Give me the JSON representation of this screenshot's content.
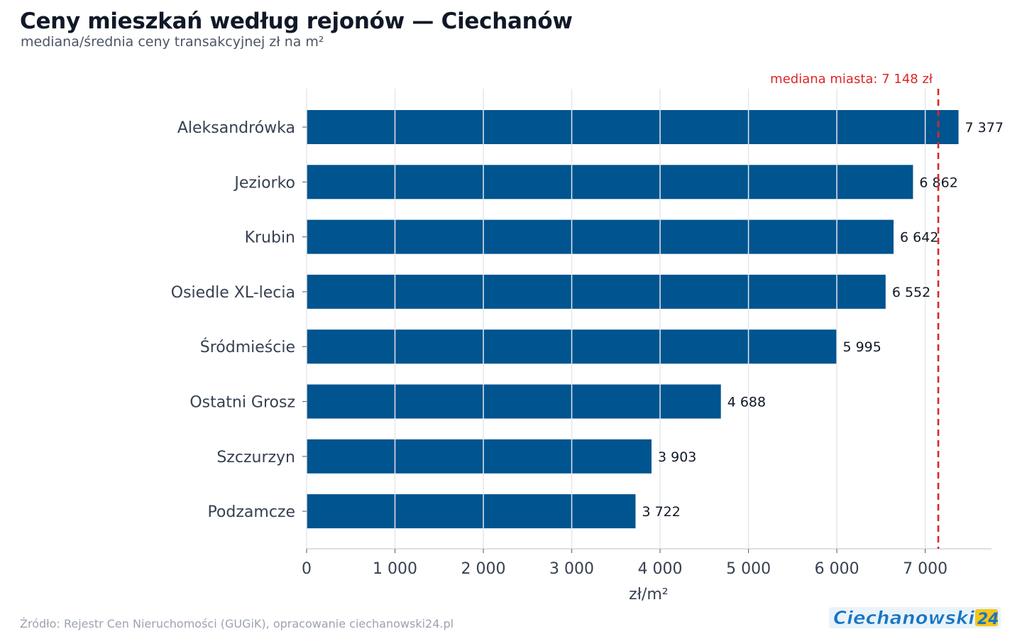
{
  "title": "Ceny mieszkań według rejonów — Ciechanów",
  "subtitle": "mediana/średnia ceny transakcyjnej zł na m²",
  "source": "Źródło: Rejestr Cen Nieruchomości (GUGiK), opracowanie ciechanowski24.pl",
  "brand": "Ciechanowski24",
  "colors": {
    "bar": "#00548f",
    "median_line": "#dc2626",
    "grid": "#e5e7eb",
    "text": "#374151"
  },
  "chart_data": {
    "type": "bar",
    "orientation": "horizontal",
    "categories": [
      "Aleksandrówka",
      "Jeziorko",
      "Krubin",
      "Osiedle XL-lecia",
      "Śródmieście",
      "Ostatni Grosz",
      "Szczurzyn",
      "Podzamcze"
    ],
    "values": [
      7377,
      6862,
      6642,
      6552,
      5995,
      4688,
      3903,
      3722
    ],
    "value_labels": [
      "7 377",
      "6 862",
      "6 642",
      "6 552",
      "5 995",
      "4 688",
      "3 903",
      "3 722"
    ],
    "xlabel": "zł/m²",
    "xlim": [
      0,
      7750
    ],
    "xticks": [
      0,
      1000,
      2000,
      3000,
      4000,
      5000,
      6000,
      7000
    ],
    "xtick_labels": [
      "0",
      "1 000",
      "2 000",
      "3 000",
      "4 000",
      "5 000",
      "6 000",
      "7 000"
    ],
    "grid": true,
    "reference_line": {
      "value": 7148,
      "label": "mediana miasta: 7 148 zł",
      "style": "dashed"
    }
  }
}
